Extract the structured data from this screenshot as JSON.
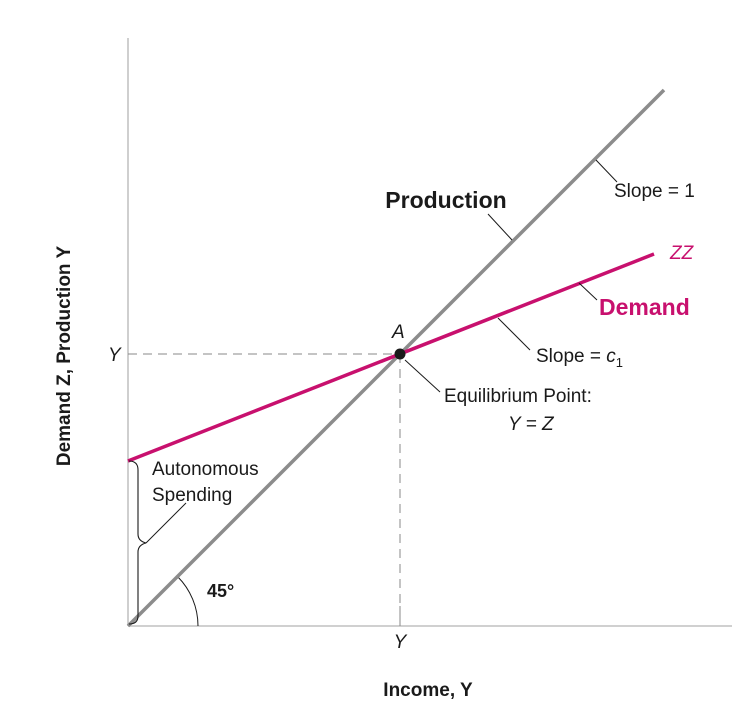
{
  "axes": {
    "y_axis_label": "Demand Z, Production Y",
    "x_axis_label": "Income, Y",
    "y_tick": "Y",
    "x_tick": "Y"
  },
  "production": {
    "label": "Production",
    "slope_label": "Slope = 1",
    "color": "#8c8c8c"
  },
  "demand": {
    "curve_name": "ZZ",
    "label": "Demand",
    "slope_label": "Slope = ",
    "slope_symbol": "c",
    "slope_sub": "1",
    "color": "#c8106e"
  },
  "equilibrium": {
    "point_label": "A",
    "title": "Equilibrium Point:",
    "condition": "Y = Z"
  },
  "autonomous": {
    "line1": "Autonomous",
    "line2": "Spending"
  },
  "angle_label": "45°"
}
